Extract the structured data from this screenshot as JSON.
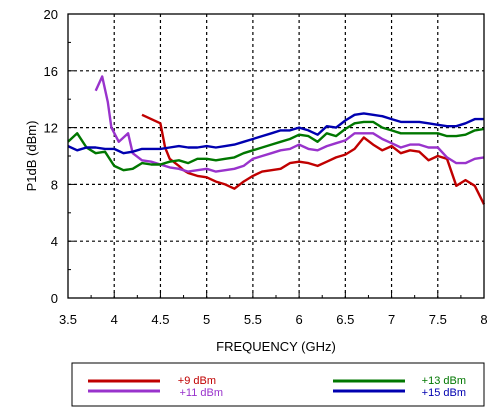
{
  "chart_data": {
    "type": "line",
    "title": "",
    "xlabel": "FREQUENCY (GHz)",
    "ylabel": "P1dB (dBm)",
    "xlim": [
      3.5,
      8
    ],
    "ylim": [
      0,
      20
    ],
    "x_ticks": [
      "3.5",
      "4",
      "4.5",
      "5",
      "5.5",
      "6",
      "6.5",
      "7",
      "7.5",
      "8"
    ],
    "y_ticks": [
      "0",
      "4",
      "8",
      "12",
      "16",
      "20"
    ],
    "grid": "dashed",
    "legend_position": "bottom",
    "series": [
      {
        "name": "+9 dBm",
        "color": "#c00000",
        "points": [
          [
            4.3,
            12.9
          ],
          [
            4.4,
            12.6
          ],
          [
            4.5,
            12.3
          ],
          [
            4.55,
            10.6
          ],
          [
            4.6,
            9.8
          ],
          [
            4.7,
            9.3
          ],
          [
            4.75,
            9.0
          ],
          [
            4.8,
            8.8
          ],
          [
            4.9,
            8.6
          ],
          [
            5.0,
            8.5
          ],
          [
            5.1,
            8.2
          ],
          [
            5.2,
            8.0
          ],
          [
            5.3,
            7.7
          ],
          [
            5.4,
            8.2
          ],
          [
            5.5,
            8.6
          ],
          [
            5.6,
            8.9
          ],
          [
            5.7,
            9.0
          ],
          [
            5.8,
            9.1
          ],
          [
            5.9,
            9.5
          ],
          [
            6.0,
            9.6
          ],
          [
            6.1,
            9.5
          ],
          [
            6.2,
            9.3
          ],
          [
            6.3,
            9.6
          ],
          [
            6.4,
            9.9
          ],
          [
            6.5,
            10.1
          ],
          [
            6.6,
            10.5
          ],
          [
            6.7,
            11.3
          ],
          [
            6.8,
            10.8
          ],
          [
            6.9,
            10.4
          ],
          [
            7.0,
            10.7
          ],
          [
            7.1,
            10.2
          ],
          [
            7.2,
            10.4
          ],
          [
            7.3,
            10.3
          ],
          [
            7.4,
            9.7
          ],
          [
            7.5,
            10.0
          ],
          [
            7.6,
            9.8
          ],
          [
            7.7,
            7.9
          ],
          [
            7.8,
            8.3
          ],
          [
            7.9,
            7.9
          ],
          [
            8.0,
            6.6
          ]
        ]
      },
      {
        "name": "+11 dBm",
        "color": "#9933cc",
        "points": [
          [
            3.8,
            14.6
          ],
          [
            3.87,
            15.6
          ],
          [
            3.93,
            13.8
          ],
          [
            3.97,
            12.0
          ],
          [
            4.05,
            11.0
          ],
          [
            4.1,
            11.3
          ],
          [
            4.15,
            11.6
          ],
          [
            4.2,
            10.2
          ],
          [
            4.3,
            9.7
          ],
          [
            4.4,
            9.6
          ],
          [
            4.5,
            9.4
          ],
          [
            4.6,
            9.2
          ],
          [
            4.7,
            9.1
          ],
          [
            4.8,
            8.9
          ],
          [
            4.9,
            9.0
          ],
          [
            5.0,
            9.1
          ],
          [
            5.1,
            8.9
          ],
          [
            5.2,
            9.0
          ],
          [
            5.3,
            9.1
          ],
          [
            5.4,
            9.3
          ],
          [
            5.5,
            9.8
          ],
          [
            5.6,
            10.0
          ],
          [
            5.7,
            10.2
          ],
          [
            5.8,
            10.4
          ],
          [
            5.9,
            10.5
          ],
          [
            6.0,
            10.8
          ],
          [
            6.1,
            10.5
          ],
          [
            6.2,
            10.4
          ],
          [
            6.3,
            10.7
          ],
          [
            6.4,
            10.9
          ],
          [
            6.5,
            11.1
          ],
          [
            6.6,
            11.6
          ],
          [
            6.7,
            11.6
          ],
          [
            6.8,
            11.6
          ],
          [
            6.9,
            11.2
          ],
          [
            7.0,
            10.9
          ],
          [
            7.1,
            10.6
          ],
          [
            7.2,
            10.8
          ],
          [
            7.3,
            10.8
          ],
          [
            7.4,
            10.6
          ],
          [
            7.5,
            10.6
          ],
          [
            7.6,
            9.9
          ],
          [
            7.7,
            9.5
          ],
          [
            7.8,
            9.5
          ],
          [
            7.9,
            9.8
          ],
          [
            8.0,
            9.9
          ]
        ]
      },
      {
        "name": "+13 dBm",
        "color": "#007700",
        "points": [
          [
            3.5,
            11.0
          ],
          [
            3.6,
            11.6
          ],
          [
            3.7,
            10.6
          ],
          [
            3.8,
            10.2
          ],
          [
            3.9,
            10.3
          ],
          [
            4.0,
            9.3
          ],
          [
            4.1,
            9.0
          ],
          [
            4.2,
            9.1
          ],
          [
            4.3,
            9.5
          ],
          [
            4.4,
            9.4
          ],
          [
            4.5,
            9.4
          ],
          [
            4.6,
            9.6
          ],
          [
            4.7,
            9.7
          ],
          [
            4.8,
            9.5
          ],
          [
            4.9,
            9.8
          ],
          [
            5.0,
            9.8
          ],
          [
            5.1,
            9.7
          ],
          [
            5.2,
            9.8
          ],
          [
            5.3,
            9.9
          ],
          [
            5.4,
            10.2
          ],
          [
            5.5,
            10.4
          ],
          [
            5.6,
            10.6
          ],
          [
            5.7,
            10.8
          ],
          [
            5.8,
            11.0
          ],
          [
            5.9,
            11.2
          ],
          [
            6.0,
            11.5
          ],
          [
            6.1,
            11.4
          ],
          [
            6.2,
            11.0
          ],
          [
            6.3,
            11.6
          ],
          [
            6.4,
            11.4
          ],
          [
            6.5,
            11.9
          ],
          [
            6.6,
            12.3
          ],
          [
            6.7,
            12.4
          ],
          [
            6.8,
            12.4
          ],
          [
            6.9,
            12.0
          ],
          [
            7.0,
            11.8
          ],
          [
            7.1,
            11.6
          ],
          [
            7.2,
            11.6
          ],
          [
            7.3,
            11.6
          ],
          [
            7.4,
            11.6
          ],
          [
            7.5,
            11.6
          ],
          [
            7.6,
            11.4
          ],
          [
            7.7,
            11.4
          ],
          [
            7.8,
            11.5
          ],
          [
            7.9,
            11.8
          ],
          [
            8.0,
            11.9
          ]
        ]
      },
      {
        "name": "+15 dBm",
        "color": "#0000b0",
        "points": [
          [
            3.5,
            10.7
          ],
          [
            3.6,
            10.4
          ],
          [
            3.7,
            10.6
          ],
          [
            3.8,
            10.6
          ],
          [
            3.9,
            10.5
          ],
          [
            4.0,
            10.5
          ],
          [
            4.1,
            10.2
          ],
          [
            4.2,
            10.3
          ],
          [
            4.3,
            10.5
          ],
          [
            4.4,
            10.5
          ],
          [
            4.5,
            10.5
          ],
          [
            4.6,
            10.6
          ],
          [
            4.7,
            10.7
          ],
          [
            4.8,
            10.6
          ],
          [
            4.9,
            10.6
          ],
          [
            5.0,
            10.7
          ],
          [
            5.1,
            10.6
          ],
          [
            5.2,
            10.7
          ],
          [
            5.3,
            10.8
          ],
          [
            5.4,
            11.0
          ],
          [
            5.5,
            11.2
          ],
          [
            5.6,
            11.4
          ],
          [
            5.7,
            11.6
          ],
          [
            5.8,
            11.8
          ],
          [
            5.9,
            11.8
          ],
          [
            6.0,
            12.0
          ],
          [
            6.1,
            11.8
          ],
          [
            6.2,
            11.5
          ],
          [
            6.3,
            12.1
          ],
          [
            6.4,
            12.0
          ],
          [
            6.5,
            12.5
          ],
          [
            6.6,
            12.9
          ],
          [
            6.7,
            13.0
          ],
          [
            6.8,
            12.9
          ],
          [
            6.9,
            12.8
          ],
          [
            7.0,
            12.6
          ],
          [
            7.1,
            12.4
          ],
          [
            7.2,
            12.4
          ],
          [
            7.3,
            12.4
          ],
          [
            7.4,
            12.3
          ],
          [
            7.5,
            12.2
          ],
          [
            7.6,
            12.1
          ],
          [
            7.7,
            12.1
          ],
          [
            7.8,
            12.3
          ],
          [
            7.9,
            12.6
          ],
          [
            8.0,
            12.6
          ]
        ]
      }
    ]
  }
}
